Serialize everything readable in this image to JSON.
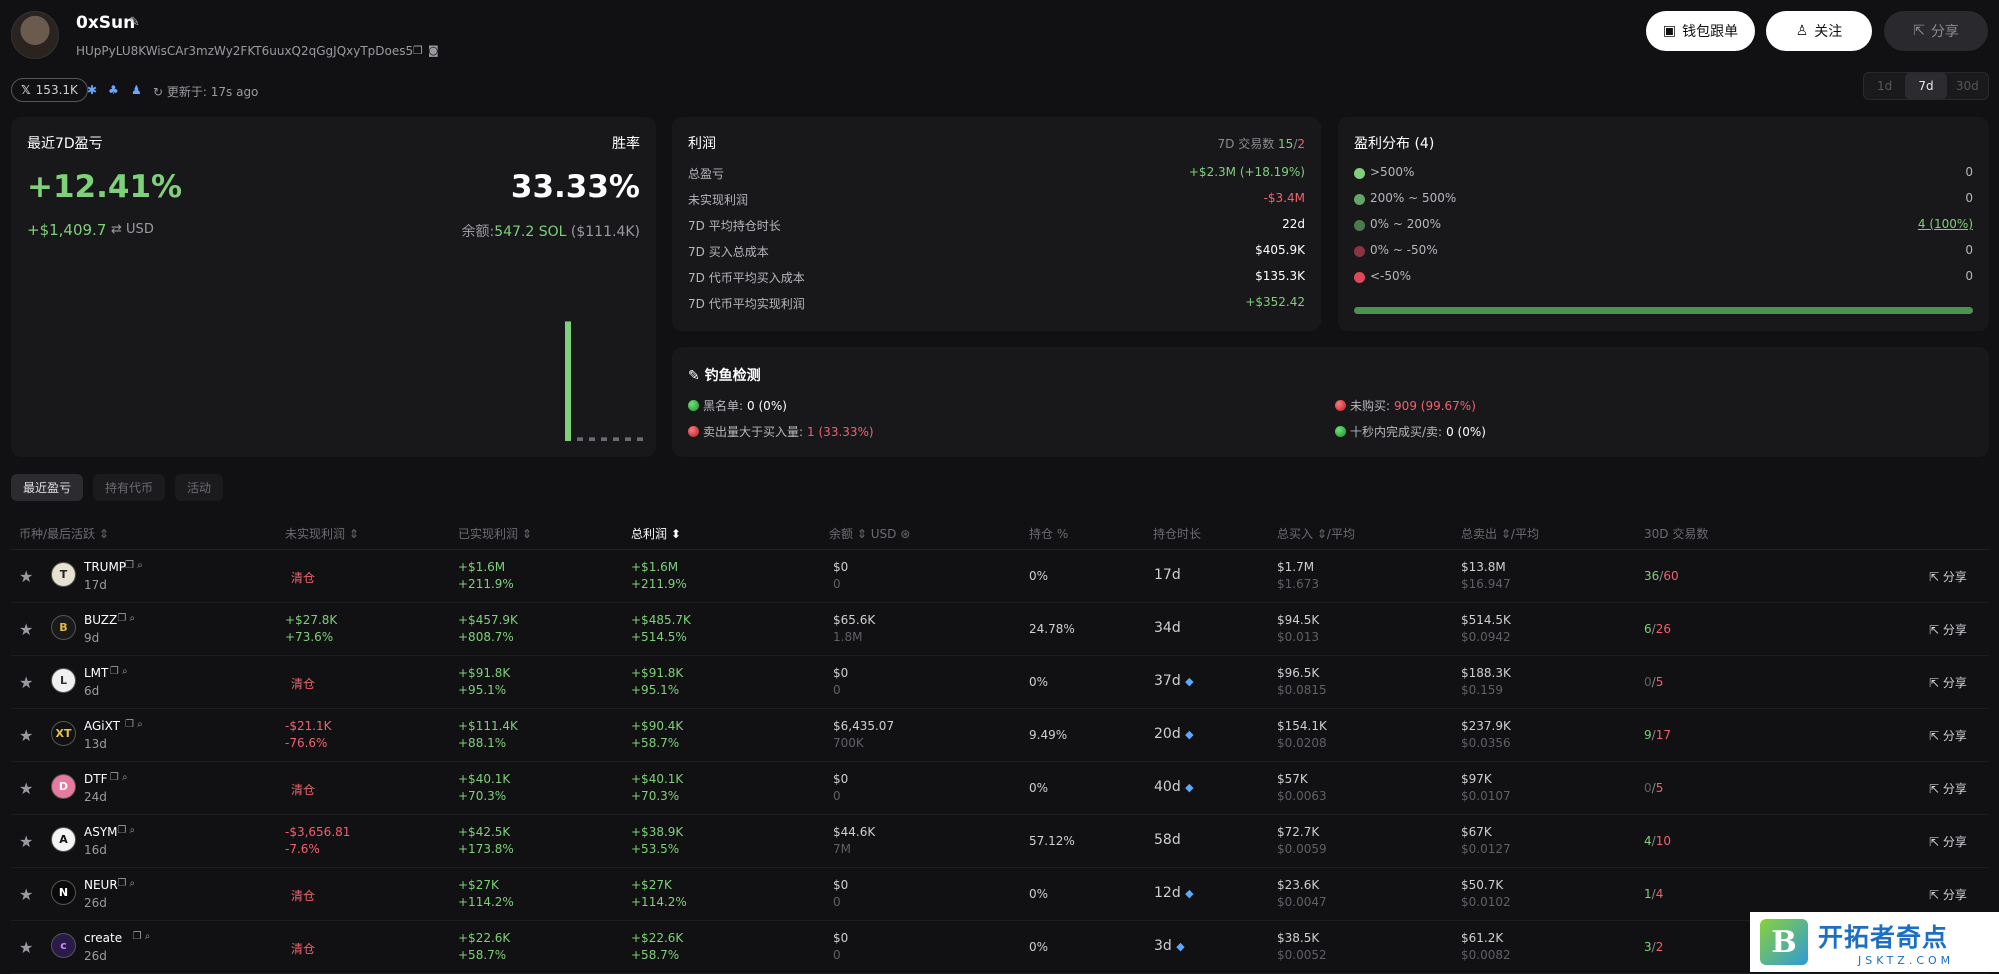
{
  "profile": {
    "name": "0xSun",
    "address": "HUpPyLU8KWisCAr3mzWy2FKT6uuxQ2qGgJQxyTpDoes5",
    "followers": "153.1K",
    "updated": "更新于: 17s ago"
  },
  "header": {
    "copy_trade_label": "钱包跟单",
    "follow_label": "关注",
    "share_label": "分享"
  },
  "periods": [
    "1d",
    "7d",
    "30d"
  ],
  "pnl_card": {
    "title": "最近7D盈亏",
    "winrate_label": "胜率",
    "pnl_pct": "+12.41%",
    "winrate": "33.33%",
    "pnl_usd": "+$1,409.7",
    "usd_unit": "USD",
    "balance_label": "余额:",
    "balance_sol": "547.2 SOL",
    "balance_usd": "($111.4K)",
    "bars": [
      0,
      0.98,
      0.03,
      0.03,
      0.03,
      0.03,
      0.03,
      0.03
    ]
  },
  "profit_card": {
    "title": "利润",
    "trades_label": "7D 交易数",
    "trades_win": "15",
    "trades_sep": "/",
    "trades_loss": "2",
    "rows": [
      {
        "label": "总盈亏",
        "value": "+$2.3M (+18.19%)",
        "tone": "green"
      },
      {
        "label": "未实现利润",
        "value": "-$3.4M",
        "tone": "red"
      },
      {
        "label": "7D 平均持仓时长",
        "value": "22d",
        "tone": "white"
      },
      {
        "label": "7D 买入总成本",
        "value": "$405.9K",
        "tone": "white"
      },
      {
        "label": "7D 代币平均买入成本",
        "value": "$135.3K",
        "tone": "white"
      },
      {
        "label": "7D 代币平均实现利润",
        "value": "+$352.42",
        "tone": "green"
      }
    ]
  },
  "dist_card": {
    "title": "盈利分布 (4)",
    "rows": [
      {
        "label": ">500%",
        "value": "0",
        "color": "#7fd07a"
      },
      {
        "label": "200% ~ 500%",
        "value": "0",
        "color": "#63a565"
      },
      {
        "label": "0% ~ 200%",
        "value": "4 (100%)",
        "color": "#4a7a4c"
      },
      {
        "label": "0% ~ -50%",
        "value": "0",
        "color": "#8a3440"
      },
      {
        "label": "<-50%",
        "value": "0",
        "color": "#e0485a"
      }
    ]
  },
  "phish_card": {
    "title": "钓鱼检测",
    "blacklist_label": "黑名单:",
    "blacklist_value": "0 (0%)",
    "sell_gt_buy_label": "卖出量大于买入量:",
    "sell_gt_buy_value": "1 (33.33%)",
    "no_buy_label": "未购买:",
    "no_buy_value": "909 (99.67%)",
    "fast_trade_label": "十秒内完成买/卖:",
    "fast_trade_value": "0 (0%)"
  },
  "tabs": [
    "最近盈亏",
    "持有代币",
    "活动"
  ],
  "table": {
    "headers": {
      "token": "币种/最后活跃",
      "unrealized": "未实现利润",
      "realized": "已实现利润",
      "total": "总利润",
      "balance": "余额",
      "balance_usd": "USD",
      "position": "持仓 %",
      "hold": "持仓时长",
      "bought": "总买入",
      "bought_avg": "/平均",
      "sold": "总卖出",
      "sold_avg": "/平均",
      "trades30": "30D 交易数"
    },
    "share_label": "分享",
    "rows": [
      {
        "name": "TRUMP",
        "age": "17d",
        "unreal": "清仓",
        "unreal_pct": "",
        "unreal_tone": "red",
        "real": "+$1.6M",
        "real_pct": "+211.9%",
        "total": "+$1.6M",
        "total_pct": "+211.9%",
        "bal": "$0",
        "bal_amt": "0",
        "pos": "0%",
        "hold": "17d",
        "diamond": false,
        "buy": "$1.7M",
        "buy_avg": "$1.673",
        "sell": "$13.8M",
        "sell_avg": "$16.947",
        "buys": "36",
        "sells": "60",
        "buys_tone": "green",
        "avatar_bg": "#e8e0d0",
        "avatar_fg": "#222",
        "avatar_text": "T"
      },
      {
        "name": "BUZZ",
        "age": "9d",
        "unreal": "+$27.8K",
        "unreal_pct": "+73.6%",
        "unreal_tone": "green",
        "real": "+$457.9K",
        "real_pct": "+808.7%",
        "total": "+$485.7K",
        "total_pct": "+514.5%",
        "bal": "$65.6K",
        "bal_amt": "1.8M",
        "pos": "24.78%",
        "hold": "34d",
        "diamond": false,
        "buy": "$94.5K",
        "buy_avg": "$0.013",
        "sell": "$514.5K",
        "sell_avg": "$0.0942",
        "buys": "6",
        "sells": "26",
        "buys_tone": "green",
        "avatar_bg": "#1a1a1a",
        "avatar_fg": "#e0b84a",
        "avatar_text": "B"
      },
      {
        "name": "LMT",
        "age": "6d",
        "unreal": "清仓",
        "unreal_pct": "",
        "unreal_tone": "red",
        "real": "+$91.8K",
        "real_pct": "+95.1%",
        "total": "+$91.8K",
        "total_pct": "+95.1%",
        "bal": "$0",
        "bal_amt": "0",
        "pos": "0%",
        "hold": "37d",
        "diamond": true,
        "buy": "$96.5K",
        "buy_avg": "$0.0815",
        "sell": "$188.3K",
        "sell_avg": "$0.159",
        "buys": "0",
        "sells": "5",
        "buys_tone": "dim",
        "avatar_bg": "#f0f0f0",
        "avatar_fg": "#333",
        "avatar_text": "L"
      },
      {
        "name": "AGiXT",
        "age": "13d",
        "unreal": "-$21.1K",
        "unreal_pct": "-76.6%",
        "unreal_tone": "red",
        "real": "+$111.4K",
        "real_pct": "+88.1%",
        "total": "+$90.4K",
        "total_pct": "+58.7%",
        "bal": "$6,435.07",
        "bal_amt": "700K",
        "pos": "9.49%",
        "hold": "20d",
        "diamond": true,
        "buy": "$154.1K",
        "buy_avg": "$0.0208",
        "sell": "$237.9K",
        "sell_avg": "$0.0356",
        "buys": "9",
        "sells": "17",
        "buys_tone": "green",
        "avatar_bg": "#111",
        "avatar_fg": "#e8c24a",
        "avatar_text": "XT"
      },
      {
        "name": "DTF",
        "age": "24d",
        "unreal": "清仓",
        "unreal_pct": "",
        "unreal_tone": "red",
        "real": "+$40.1K",
        "real_pct": "+70.3%",
        "total": "+$40.1K",
        "total_pct": "+70.3%",
        "bal": "$0",
        "bal_amt": "0",
        "pos": "0%",
        "hold": "40d",
        "diamond": true,
        "buy": "$57K",
        "buy_avg": "$0.0063",
        "sell": "$97K",
        "sell_avg": "$0.0107",
        "buys": "0",
        "sells": "5",
        "buys_tone": "dim",
        "avatar_bg": "#e87aa0",
        "avatar_fg": "#fff",
        "avatar_text": "D"
      },
      {
        "name": "ASYM",
        "age": "16d",
        "unreal": "-$3,656.81",
        "unreal_pct": "-7.6%",
        "unreal_tone": "red",
        "real": "+$42.5K",
        "real_pct": "+173.8%",
        "total": "+$38.9K",
        "total_pct": "+53.5%",
        "bal": "$44.6K",
        "bal_amt": "7M",
        "pos": "57.12%",
        "hold": "58d",
        "diamond": false,
        "buy": "$72.7K",
        "buy_avg": "$0.0059",
        "sell": "$67K",
        "sell_avg": "$0.0127",
        "buys": "4",
        "sells": "10",
        "buys_tone": "green",
        "avatar_bg": "#f4f4f4",
        "avatar_fg": "#111",
        "avatar_text": "A"
      },
      {
        "name": "NEUR",
        "age": "26d",
        "unreal": "清仓",
        "unreal_pct": "",
        "unreal_tone": "red",
        "real": "+$27K",
        "real_pct": "+114.2%",
        "total": "+$27K",
        "total_pct": "+114.2%",
        "bal": "$0",
        "bal_amt": "0",
        "pos": "0%",
        "hold": "12d",
        "diamond": true,
        "buy": "$23.6K",
        "buy_avg": "$0.0047",
        "sell": "$50.7K",
        "sell_avg": "$0.0102",
        "buys": "1",
        "sells": "4",
        "buys_tone": "green",
        "avatar_bg": "#0a0a0a",
        "avatar_fg": "#fff",
        "avatar_text": "N"
      },
      {
        "name": "create",
        "age": "26d",
        "unreal": "清仓",
        "unreal_pct": "",
        "unreal_tone": "red",
        "real": "+$22.6K",
        "real_pct": "+58.7%",
        "total": "+$22.6K",
        "total_pct": "+58.7%",
        "bal": "$0",
        "bal_amt": "0",
        "pos": "0%",
        "hold": "3d",
        "diamond": true,
        "buy": "$38.5K",
        "buy_avg": "$0.0052",
        "sell": "$61.2K",
        "sell_avg": "$0.0082",
        "buys": "3",
        "sells": "2",
        "buys_tone": "green",
        "avatar_bg": "#2a1a4a",
        "avatar_fg": "#c48aff",
        "avatar_text": "c"
      }
    ]
  },
  "watermark": {
    "logo_letter": "B",
    "name_cn": "开拓者奇点",
    "name_en": "JSKTZ.COM"
  }
}
